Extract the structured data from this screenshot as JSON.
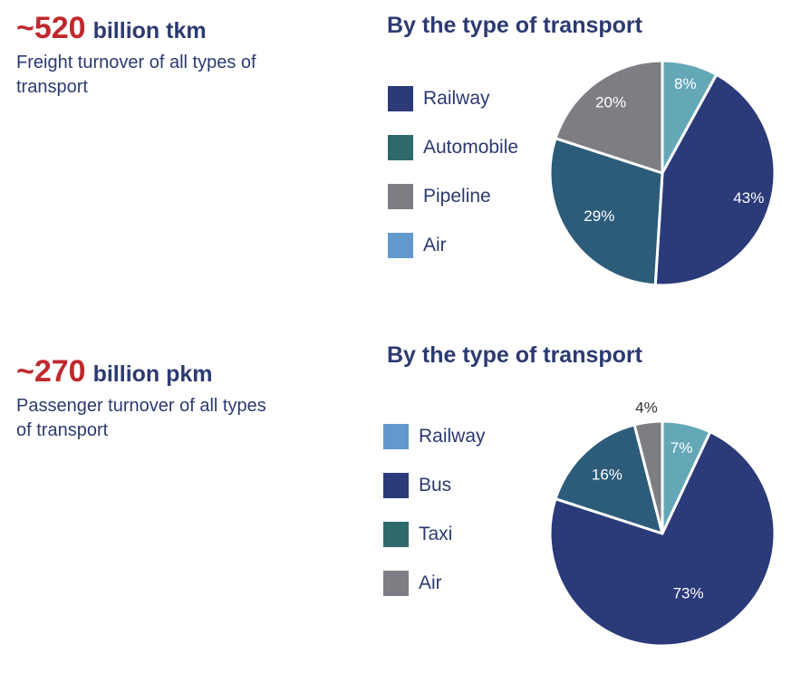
{
  "freight": {
    "value": "~520",
    "unit": "billion tkm",
    "description": "Freight turnover of all types of transport",
    "title": "By the type of transport",
    "legend": [
      {
        "label": "Railway",
        "color": "#2b3a78"
      },
      {
        "label": "Automobile",
        "color": "#2e6a6c"
      },
      {
        "label": "Pipeline",
        "color": "#7d7e83"
      },
      {
        "label": "Air",
        "color": "#6299cc"
      }
    ]
  },
  "passenger": {
    "value": "~270",
    "unit": "billion pkm",
    "description": "Passenger turnover of all types of transport",
    "title": "By the type of transport",
    "legend": [
      {
        "label": "Railway",
        "color": "#6299cc"
      },
      {
        "label": "Bus",
        "color": "#2b3a78"
      },
      {
        "label": "Taxi",
        "color": "#2e6a6c"
      },
      {
        "label": "Air",
        "color": "#7d7e83"
      }
    ]
  },
  "chart_data": [
    {
      "type": "pie",
      "title": "By the type of transport",
      "slices": [
        {
          "label": "8%",
          "value": 8,
          "color": "#64a8b8",
          "text_color": "#ffffff"
        },
        {
          "label": "43%",
          "value": 43,
          "color": "#2b3a78",
          "text_color": "#ffffff"
        },
        {
          "label": "29%",
          "value": 29,
          "color": "#2d5c7a",
          "text_color": "#ffffff"
        },
        {
          "label": "20%",
          "value": 20,
          "color": "#7d7e83",
          "text_color": "#ffffff"
        }
      ]
    },
    {
      "type": "pie",
      "title": "By the type of transport",
      "slices": [
        {
          "label": "7%",
          "value": 7,
          "color": "#64a8b8",
          "text_color": "#ffffff"
        },
        {
          "label": "73%",
          "value": 73,
          "color": "#2b3a78",
          "text_color": "#ffffff"
        },
        {
          "label": "16%",
          "value": 16,
          "color": "#2d5c7a",
          "text_color": "#ffffff"
        },
        {
          "label": "4%",
          "value": 4,
          "color": "#7d7e83",
          "text_color": "#333333"
        }
      ]
    }
  ]
}
